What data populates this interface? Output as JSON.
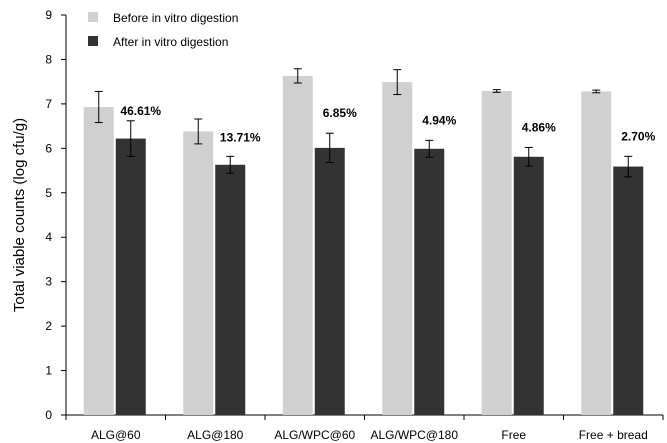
{
  "chart_data": {
    "type": "bar",
    "ylabel": "Total viable counts (log cfu/g)",
    "ylim": [
      0,
      9
    ],
    "yticks": [
      0,
      1,
      2,
      3,
      4,
      5,
      6,
      7,
      8,
      9
    ],
    "grid": false,
    "legend_position": "top-left",
    "categories": [
      "ALG@60",
      "ALG@180",
      "ALG/WPC@60",
      "ALG/WPC@180",
      "Free",
      "Free + bread"
    ],
    "series": [
      {
        "name": "Before in vitro digestion",
        "color": "#d0d0d0",
        "values": [
          6.93,
          6.38,
          7.63,
          7.49,
          7.29,
          7.28
        ],
        "errors": [
          0.35,
          0.28,
          0.16,
          0.28,
          0.03,
          0.03
        ]
      },
      {
        "name": "After in vitro digestion",
        "color": "#333333",
        "values": [
          6.22,
          5.63,
          6.01,
          5.99,
          5.81,
          5.59
        ],
        "errors": [
          0.4,
          0.19,
          0.33,
          0.19,
          0.21,
          0.23
        ]
      }
    ],
    "annotations": [
      "46.61%",
      "13.71%",
      "6.85%",
      "4.94%",
      "4.86%",
      "2.70%"
    ]
  }
}
